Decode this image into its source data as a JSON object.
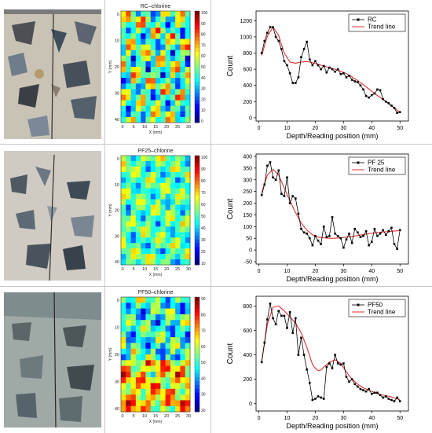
{
  "colors": {
    "series_line": "#000000",
    "trend_line": "#e03030",
    "heat_low": "#1010c8",
    "heat_high": "#d01010"
  },
  "heatmaps": [
    {
      "title": "RC–chlorine",
      "xlabel": "X (mm)",
      "ylabel": "Y (mm)",
      "x_ticks": [
        "0",
        "5",
        "10",
        "15",
        "20",
        "25",
        "30"
      ],
      "y_ticks": [
        "0",
        "10",
        "20",
        "30",
        "40"
      ],
      "cbar_ticks": [
        "100",
        "90",
        "80",
        "70",
        "60",
        "50",
        "40",
        "30",
        "20",
        "10",
        "0"
      ]
    },
    {
      "title": "PF25–chlorine",
      "xlabel": "X (mm)",
      "ylabel": "Y (mm)",
      "x_ticks": [
        "0",
        "5",
        "10",
        "15",
        "20",
        "25",
        "30"
      ],
      "y_ticks": [
        "0",
        "10",
        "20",
        "30",
        "40"
      ],
      "cbar_ticks": [
        "100",
        "90",
        "80",
        "70",
        "60",
        "50",
        "40",
        "30",
        "20",
        "10"
      ]
    },
    {
      "title": "PF50–chlorine",
      "xlabel": "X (mm)",
      "ylabel": "Y (mm)",
      "x_ticks": [
        "0",
        "5",
        "10",
        "15",
        "20",
        "25",
        "30"
      ],
      "y_ticks": [
        "0",
        "10",
        "20",
        "30",
        "40"
      ],
      "cbar_ticks": [
        "90",
        "80",
        "70",
        "60",
        "50",
        "40",
        "30",
        "20"
      ]
    }
  ],
  "chart_data": [
    {
      "type": "line",
      "xlabel": "Depth/Reading position (mm)",
      "ylabel": "Count",
      "xlim": [
        -1,
        53
      ],
      "ylim": [
        -40,
        1320
      ],
      "x_ticks": [
        0,
        10,
        20,
        30,
        40,
        50
      ],
      "y_ticks": [
        0,
        200,
        400,
        600,
        800,
        1000,
        1200
      ],
      "legend": "top-right",
      "series": [
        {
          "name": "RC",
          "x": [
            1,
            2,
            3,
            4,
            5,
            6,
            7,
            8,
            9,
            10,
            11,
            12,
            13,
            14,
            15,
            16,
            17,
            18,
            19,
            20,
            21,
            22,
            23,
            24,
            25,
            26,
            27,
            28,
            29,
            30,
            31,
            32,
            33,
            34,
            35,
            36,
            37,
            38,
            39,
            40,
            41,
            42,
            43,
            44,
            45,
            46,
            47,
            48,
            49,
            50
          ],
          "y": [
            800,
            950,
            1050,
            1120,
            1120,
            1000,
            950,
            850,
            700,
            650,
            550,
            430,
            430,
            500,
            750,
            850,
            940,
            720,
            650,
            700,
            650,
            600,
            640,
            560,
            620,
            600,
            570,
            600,
            540,
            550,
            500,
            520,
            470,
            450,
            440,
            400,
            350,
            270,
            250,
            280,
            300,
            350,
            340,
            230,
            200,
            180,
            150,
            120,
            60,
            70
          ]
        },
        {
          "name": "Trend line",
          "x": [
            1,
            3,
            5,
            7,
            9,
            11,
            13,
            15,
            17,
            19,
            21,
            23,
            25,
            27,
            29,
            31,
            33,
            35,
            37,
            39,
            41,
            43,
            45,
            47,
            49,
            50
          ],
          "y": [
            770,
            1010,
            1120,
            1020,
            800,
            690,
            675,
            690,
            695,
            680,
            660,
            640,
            620,
            600,
            575,
            545,
            505,
            460,
            410,
            355,
            300,
            250,
            200,
            150,
            95,
            65
          ]
        }
      ]
    },
    {
      "type": "line",
      "xlabel": "Depth/Reading position (mm)",
      "ylabel": "Count",
      "xlim": [
        -1,
        53
      ],
      "ylim": [
        -60,
        410
      ],
      "x_ticks": [
        0,
        10,
        20,
        30,
        40,
        50
      ],
      "y_ticks": [
        -50,
        0,
        50,
        100,
        150,
        200,
        250,
        300,
        350,
        400
      ],
      "legend": "top-right",
      "series": [
        {
          "name": "PF 25",
          "x": [
            1,
            2,
            3,
            4,
            5,
            6,
            7,
            8,
            9,
            10,
            11,
            12,
            13,
            14,
            15,
            16,
            17,
            18,
            19,
            20,
            21,
            22,
            23,
            24,
            25,
            26,
            27,
            28,
            29,
            30,
            31,
            32,
            33,
            34,
            35,
            36,
            37,
            38,
            39,
            40,
            41,
            42,
            43,
            44,
            45,
            46,
            47,
            48,
            49,
            50
          ],
          "y": [
            235,
            280,
            360,
            375,
            310,
            300,
            340,
            240,
            230,
            310,
            200,
            230,
            220,
            155,
            90,
            75,
            70,
            50,
            20,
            60,
            40,
            25,
            100,
            55,
            60,
            140,
            70,
            60,
            50,
            10,
            45,
            70,
            30,
            90,
            75,
            55,
            60,
            80,
            20,
            35,
            90,
            60,
            70,
            85,
            65,
            80,
            95,
            25,
            5,
            85
          ]
        },
        {
          "name": "Trend line",
          "x": [
            1,
            3,
            5,
            7,
            9,
            11,
            13,
            15,
            17,
            19,
            21,
            23,
            25,
            27,
            29,
            31,
            33,
            35,
            37,
            39,
            41,
            43,
            45,
            47,
            49,
            50
          ],
          "y": [
            245,
            320,
            345,
            320,
            265,
            210,
            160,
            115,
            85,
            65,
            55,
            52,
            50,
            50,
            52,
            55,
            58,
            62,
            66,
            70,
            73,
            76,
            78,
            80,
            82,
            83
          ]
        }
      ]
    },
    {
      "type": "line",
      "xlabel": "Depth/Reading position (mm)",
      "ylabel": "Count",
      "xlim": [
        -1,
        53
      ],
      "ylim": [
        -60,
        880
      ],
      "x_ticks": [
        0,
        10,
        20,
        30,
        40,
        50
      ],
      "y_ticks": [
        0,
        200,
        400,
        600,
        800
      ],
      "legend": "top-right",
      "series": [
        {
          "name": "PF50",
          "x": [
            1,
            2,
            3,
            4,
            5,
            6,
            7,
            8,
            9,
            10,
            11,
            12,
            13,
            14,
            15,
            16,
            17,
            18,
            19,
            20,
            21,
            22,
            23,
            24,
            25,
            26,
            27,
            28,
            29,
            30,
            31,
            32,
            33,
            34,
            35,
            36,
            37,
            38,
            39,
            40,
            41,
            42,
            43,
            44,
            45,
            46,
            47,
            48,
            49,
            50
          ],
          "y": [
            340,
            500,
            690,
            820,
            700,
            650,
            760,
            720,
            720,
            620,
            750,
            580,
            700,
            400,
            540,
            400,
            280,
            170,
            30,
            40,
            60,
            50,
            40,
            300,
            330,
            290,
            400,
            330,
            320,
            330,
            220,
            180,
            200,
            160,
            140,
            120,
            110,
            100,
            120,
            80,
            90,
            90,
            70,
            50,
            60,
            40,
            30,
            20,
            50,
            20
          ]
        },
        {
          "name": "Trend line",
          "x": [
            1,
            3,
            5,
            7,
            9,
            11,
            13,
            15,
            17,
            18,
            19,
            20,
            21,
            22,
            23,
            25,
            27,
            29,
            31,
            33,
            35,
            37,
            39,
            41,
            43,
            45,
            47,
            49,
            50
          ],
          "y": [
            350,
            650,
            790,
            800,
            760,
            710,
            660,
            580,
            460,
            390,
            320,
            290,
            270,
            275,
            300,
            340,
            360,
            330,
            260,
            200,
            160,
            130,
            110,
            90,
            75,
            65,
            55,
            40,
            35
          ]
        }
      ]
    }
  ]
}
